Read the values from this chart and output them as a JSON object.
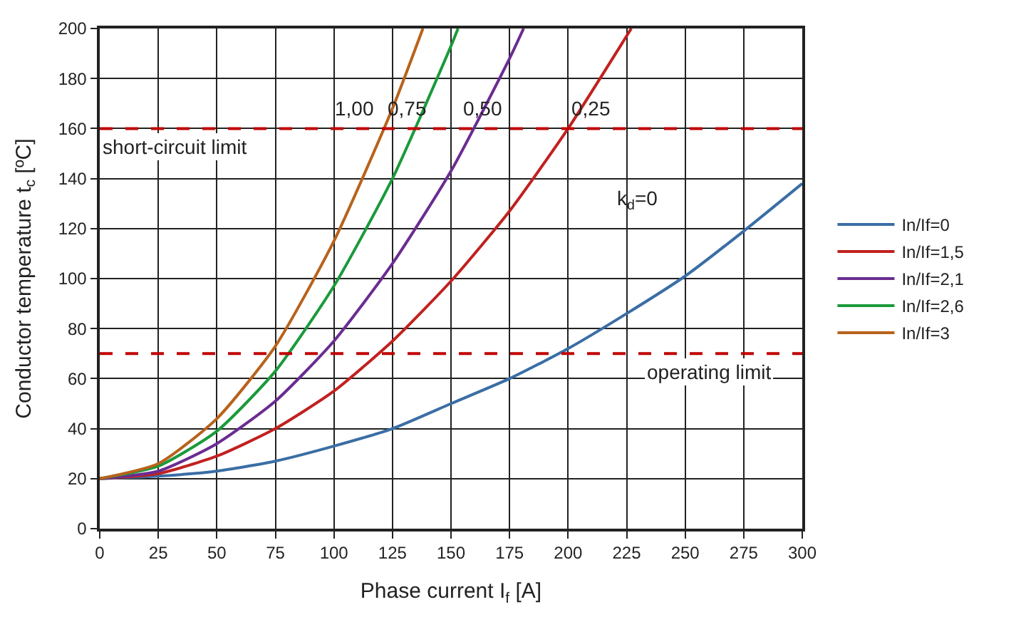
{
  "chart_data": {
    "type": "line",
    "xlabel": "Phase current I$_{f}$ [A]",
    "ylabel": "Conductor temperature t$_{c}$ [ºC]",
    "xlim": [
      0,
      300
    ],
    "xticks": [
      0,
      25,
      50,
      75,
      100,
      125,
      150,
      175,
      200,
      225,
      250,
      275,
      300
    ],
    "ylim": [
      0,
      200
    ],
    "yticks": [
      0,
      20,
      40,
      60,
      80,
      100,
      120,
      140,
      160,
      180,
      200
    ],
    "grid": true,
    "legend": "right",
    "line_style": "solid",
    "marker": "none",
    "series": [
      {
        "name": "In/If=0",
        "color": "#3a6ea5",
        "x": [
          0,
          25,
          50,
          75,
          100,
          125,
          150,
          175,
          200,
          225,
          250,
          275,
          300
        ],
        "values": [
          20,
          21,
          23,
          27,
          33,
          40,
          50,
          60,
          72,
          86,
          101,
          119,
          138
        ]
      },
      {
        "name": "In/If=1,5",
        "color": "#c0211f",
        "x": [
          0,
          25,
          50,
          75,
          100,
          125,
          150,
          175,
          200,
          225,
          227
        ],
        "values": [
          20,
          22,
          29,
          40,
          55,
          75,
          99,
          127,
          160,
          197,
          200
        ]
      },
      {
        "name": "In/If=2,1",
        "color": "#6a2c91",
        "x": [
          0,
          25,
          50,
          75,
          100,
          125,
          150,
          175,
          181
        ],
        "values": [
          20,
          23,
          34,
          51,
          75,
          106,
          143,
          188,
          200
        ]
      },
      {
        "name": "In/If=2,6",
        "color": "#1a9a3a",
        "x": [
          0,
          25,
          50,
          75,
          100,
          125,
          150,
          153
        ],
        "values": [
          20,
          25,
          39,
          63,
          97,
          140,
          193,
          200
        ]
      },
      {
        "name": "In/If=3",
        "color": "#b8621b",
        "x": [
          0,
          25,
          50,
          75,
          100,
          125,
          138
        ],
        "values": [
          20,
          26,
          44,
          73,
          115,
          168,
          200
        ]
      }
    ],
    "ref_lines": [
      {
        "axis": "y",
        "value": 160,
        "label": "short-circuit limit",
        "color": "#c00000",
        "line_style": "dashed"
      },
      {
        "axis": "y",
        "value": 70,
        "label": "operating limit",
        "color": "#c00000",
        "line_style": "dashed"
      }
    ],
    "annotations": [
      "1,00",
      "0,75",
      "0,50",
      "0,25",
      "k$_{d}$=0"
    ]
  }
}
